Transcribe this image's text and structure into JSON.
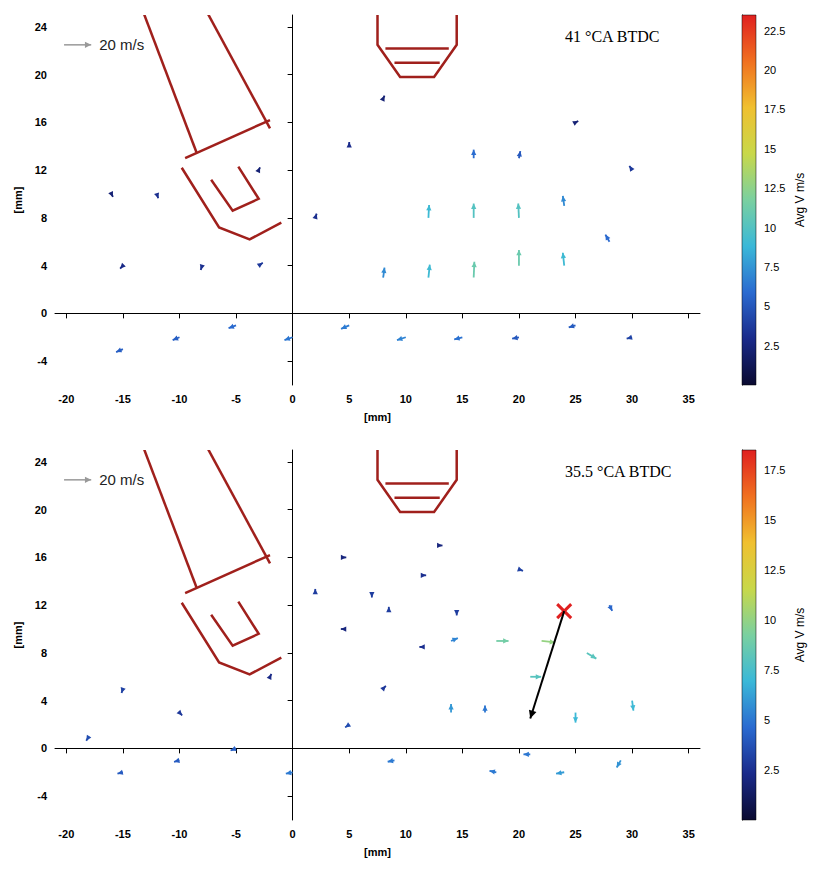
{
  "chart_data": [
    {
      "type": "vector_field",
      "title": "41 °CA BTDC",
      "x_label": "[mm]",
      "y_label": "[mm]",
      "xlim": [
        -21,
        36
      ],
      "xticks": [
        -20,
        -15,
        -10,
        -5,
        0,
        5,
        10,
        15,
        20,
        25,
        30,
        35
      ],
      "ylim": [
        -6,
        25
      ],
      "yticks": [
        -4,
        0,
        4,
        8,
        12,
        16,
        20,
        24
      ],
      "reference_speed": 20,
      "reference_label": "20 m/s",
      "colorbar": {
        "label": "Avg V m/s",
        "range": [
          0,
          23.5
        ],
        "ticks": [
          2.5,
          5,
          7.5,
          10,
          12.5,
          15,
          17.5,
          20,
          22.5
        ]
      },
      "vectors": {
        "x": [
          -15,
          -10,
          -5,
          0,
          5,
          10,
          15,
          20,
          25,
          30,
          8,
          12,
          16,
          20,
          24,
          12,
          16,
          20,
          24,
          16,
          20,
          28,
          30,
          -15,
          -12,
          -8,
          -3,
          2,
          5,
          -16,
          8,
          25,
          -3
        ],
        "y": [
          -3,
          -2,
          -1,
          -2,
          -1,
          -2,
          -2,
          -2,
          -1,
          -2,
          3,
          3,
          3,
          4,
          4,
          8,
          8,
          8,
          9,
          13,
          13,
          6,
          12,
          4,
          10,
          4,
          4,
          8,
          14,
          10,
          18,
          16,
          12
        ],
        "u": [
          -5,
          -5,
          -5.5,
          -6,
          -6,
          -6.5,
          -6,
          -5,
          -5,
          -4,
          1,
          1,
          0.5,
          0,
          -1,
          0.5,
          0,
          -0.5,
          -1,
          0,
          1,
          -3,
          -2,
          -2,
          1,
          -1,
          3,
          1,
          0,
          1,
          1,
          2,
          1
        ],
        "v": [
          -2,
          -2,
          -2,
          -2,
          -2.5,
          -2,
          -1.5,
          -1,
          -1.5,
          -1,
          7,
          9,
          11,
          11,
          9,
          9,
          10,
          10,
          7,
          6,
          5,
          5,
          3,
          -2,
          -3,
          -3,
          2,
          3,
          3,
          -2,
          2,
          1,
          2
        ]
      }
    },
    {
      "type": "vector_field",
      "title": "35.5 °CA BTDC",
      "x_label": "[mm]",
      "y_label": "[mm]",
      "xlim": [
        -21,
        36
      ],
      "xticks": [
        -20,
        -15,
        -10,
        -5,
        0,
        5,
        10,
        15,
        20,
        25,
        30,
        35
      ],
      "ylim": [
        -6,
        25
      ],
      "yticks": [
        -4,
        0,
        4,
        8,
        12,
        16,
        20,
        24
      ],
      "reference_speed": 20,
      "reference_label": "20 m/s",
      "colorbar": {
        "label": "Avg V m/s",
        "range": [
          0,
          18.5
        ],
        "ticks": [
          2.5,
          5,
          7.5,
          10,
          12.5,
          15,
          17.5
        ]
      },
      "vectors": {
        "x": [
          14,
          18,
          22,
          26,
          30,
          29,
          24,
          18,
          14,
          21,
          25,
          21,
          17,
          4.5,
          7,
          4.5,
          2,
          11.5,
          14.5,
          11.5,
          8.5,
          -15,
          -10,
          -5,
          0,
          5,
          9,
          -15,
          -10,
          -2,
          8,
          -18,
          13,
          20,
          28
        ],
        "y": [
          9,
          9,
          9,
          8,
          4,
          -1,
          -2,
          -2,
          3,
          6,
          3,
          -0.5,
          3,
          16,
          13,
          10,
          13,
          14.5,
          11.5,
          8.5,
          11.5,
          -2,
          -1,
          0,
          -2,
          2,
          -1,
          5,
          3,
          6,
          5,
          1,
          17,
          15,
          12
        ],
        "u": [
          5,
          9,
          10,
          7,
          1,
          -3,
          -6,
          -5,
          0,
          8,
          0,
          -5,
          0,
          2,
          0,
          -2,
          0,
          2.5,
          0,
          -2.5,
          0,
          -4,
          -4,
          -4,
          -5,
          -3,
          -5,
          -1,
          2,
          1,
          2,
          -2,
          2,
          3,
          2
        ],
        "v": [
          2,
          0,
          -1,
          -4,
          -7,
          -5,
          -1,
          1,
          6,
          0,
          -7,
          0,
          5,
          0,
          -3,
          0,
          3,
          0,
          -3,
          0,
          3,
          -1,
          -1,
          -1.5,
          -1,
          -2,
          -1,
          -3,
          -2,
          2,
          2,
          -3,
          0,
          -1,
          -4
        ]
      },
      "annotations": [
        {
          "type": "cross",
          "x": 24,
          "y": 11.5,
          "color": "#e02020"
        },
        {
          "type": "arrow",
          "from": [
            24,
            11.5
          ],
          "to": [
            21,
            2.5
          ],
          "color": "#000000"
        }
      ]
    }
  ]
}
